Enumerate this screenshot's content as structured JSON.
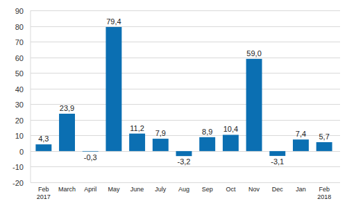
{
  "chart_data": {
    "type": "bar",
    "categories": [
      "Feb\n2017",
      "March",
      "April",
      "May",
      "June",
      "July",
      "Aug",
      "Sep",
      "Oct",
      "Nov",
      "Dec",
      "Jan",
      "Feb\n2018"
    ],
    "values": [
      4.3,
      23.9,
      -0.3,
      79.4,
      11.2,
      7.9,
      -3.2,
      8.9,
      10.4,
      59.0,
      -3.1,
      7.4,
      5.7
    ],
    "value_labels": [
      "4,3",
      "23,9",
      "-0,3",
      "79,4",
      "11,2",
      "7,9",
      "-3,2",
      "8,9",
      "10,4",
      "59,0",
      "-3,1",
      "7,4",
      "5,7"
    ],
    "color": "#0b6fb2",
    "ylim": [
      -20,
      90
    ],
    "yticks": [
      -20,
      -10,
      0,
      10,
      20,
      30,
      40,
      50,
      60,
      70,
      80,
      90
    ],
    "grid": true,
    "data_labels": true
  }
}
